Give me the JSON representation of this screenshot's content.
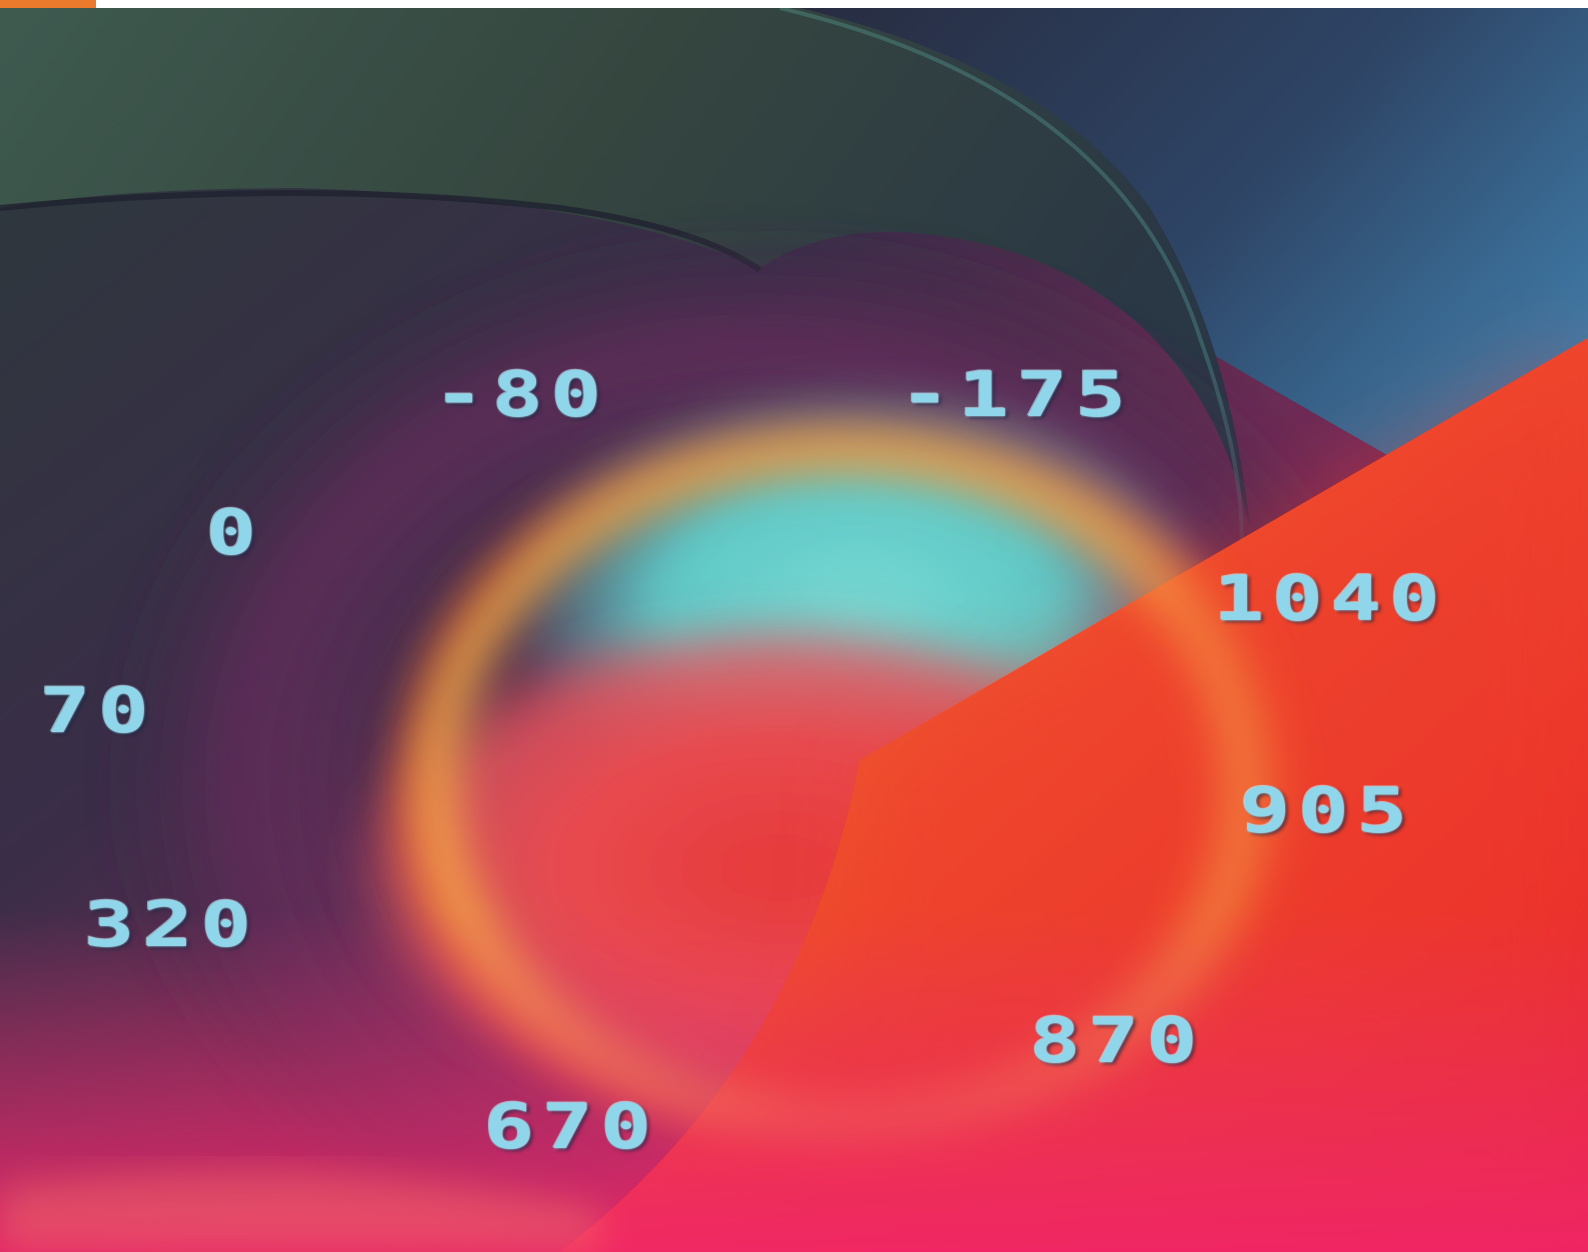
{
  "colors": {
    "accent_orange": "#ec7a2c",
    "numeral_cyan": "#8fd6ea",
    "teal_glow": "#66cfcb",
    "hot_red": "#ee2a2a",
    "magenta": "#e8336f",
    "deep_purple": "#3c2a4a",
    "slate_blue": "#3f6f99"
  },
  "numbers": [
    {
      "id": "n-80",
      "label": "-80"
    },
    {
      "id": "n-175",
      "label": "-175"
    },
    {
      "id": "n0",
      "label": "0"
    },
    {
      "id": "n1040",
      "label": "1040"
    },
    {
      "id": "n70",
      "label": "70"
    },
    {
      "id": "n905",
      "label": "905"
    },
    {
      "id": "n320",
      "label": "320"
    },
    {
      "id": "n870",
      "label": "870"
    },
    {
      "id": "n670",
      "label": "670"
    }
  ]
}
